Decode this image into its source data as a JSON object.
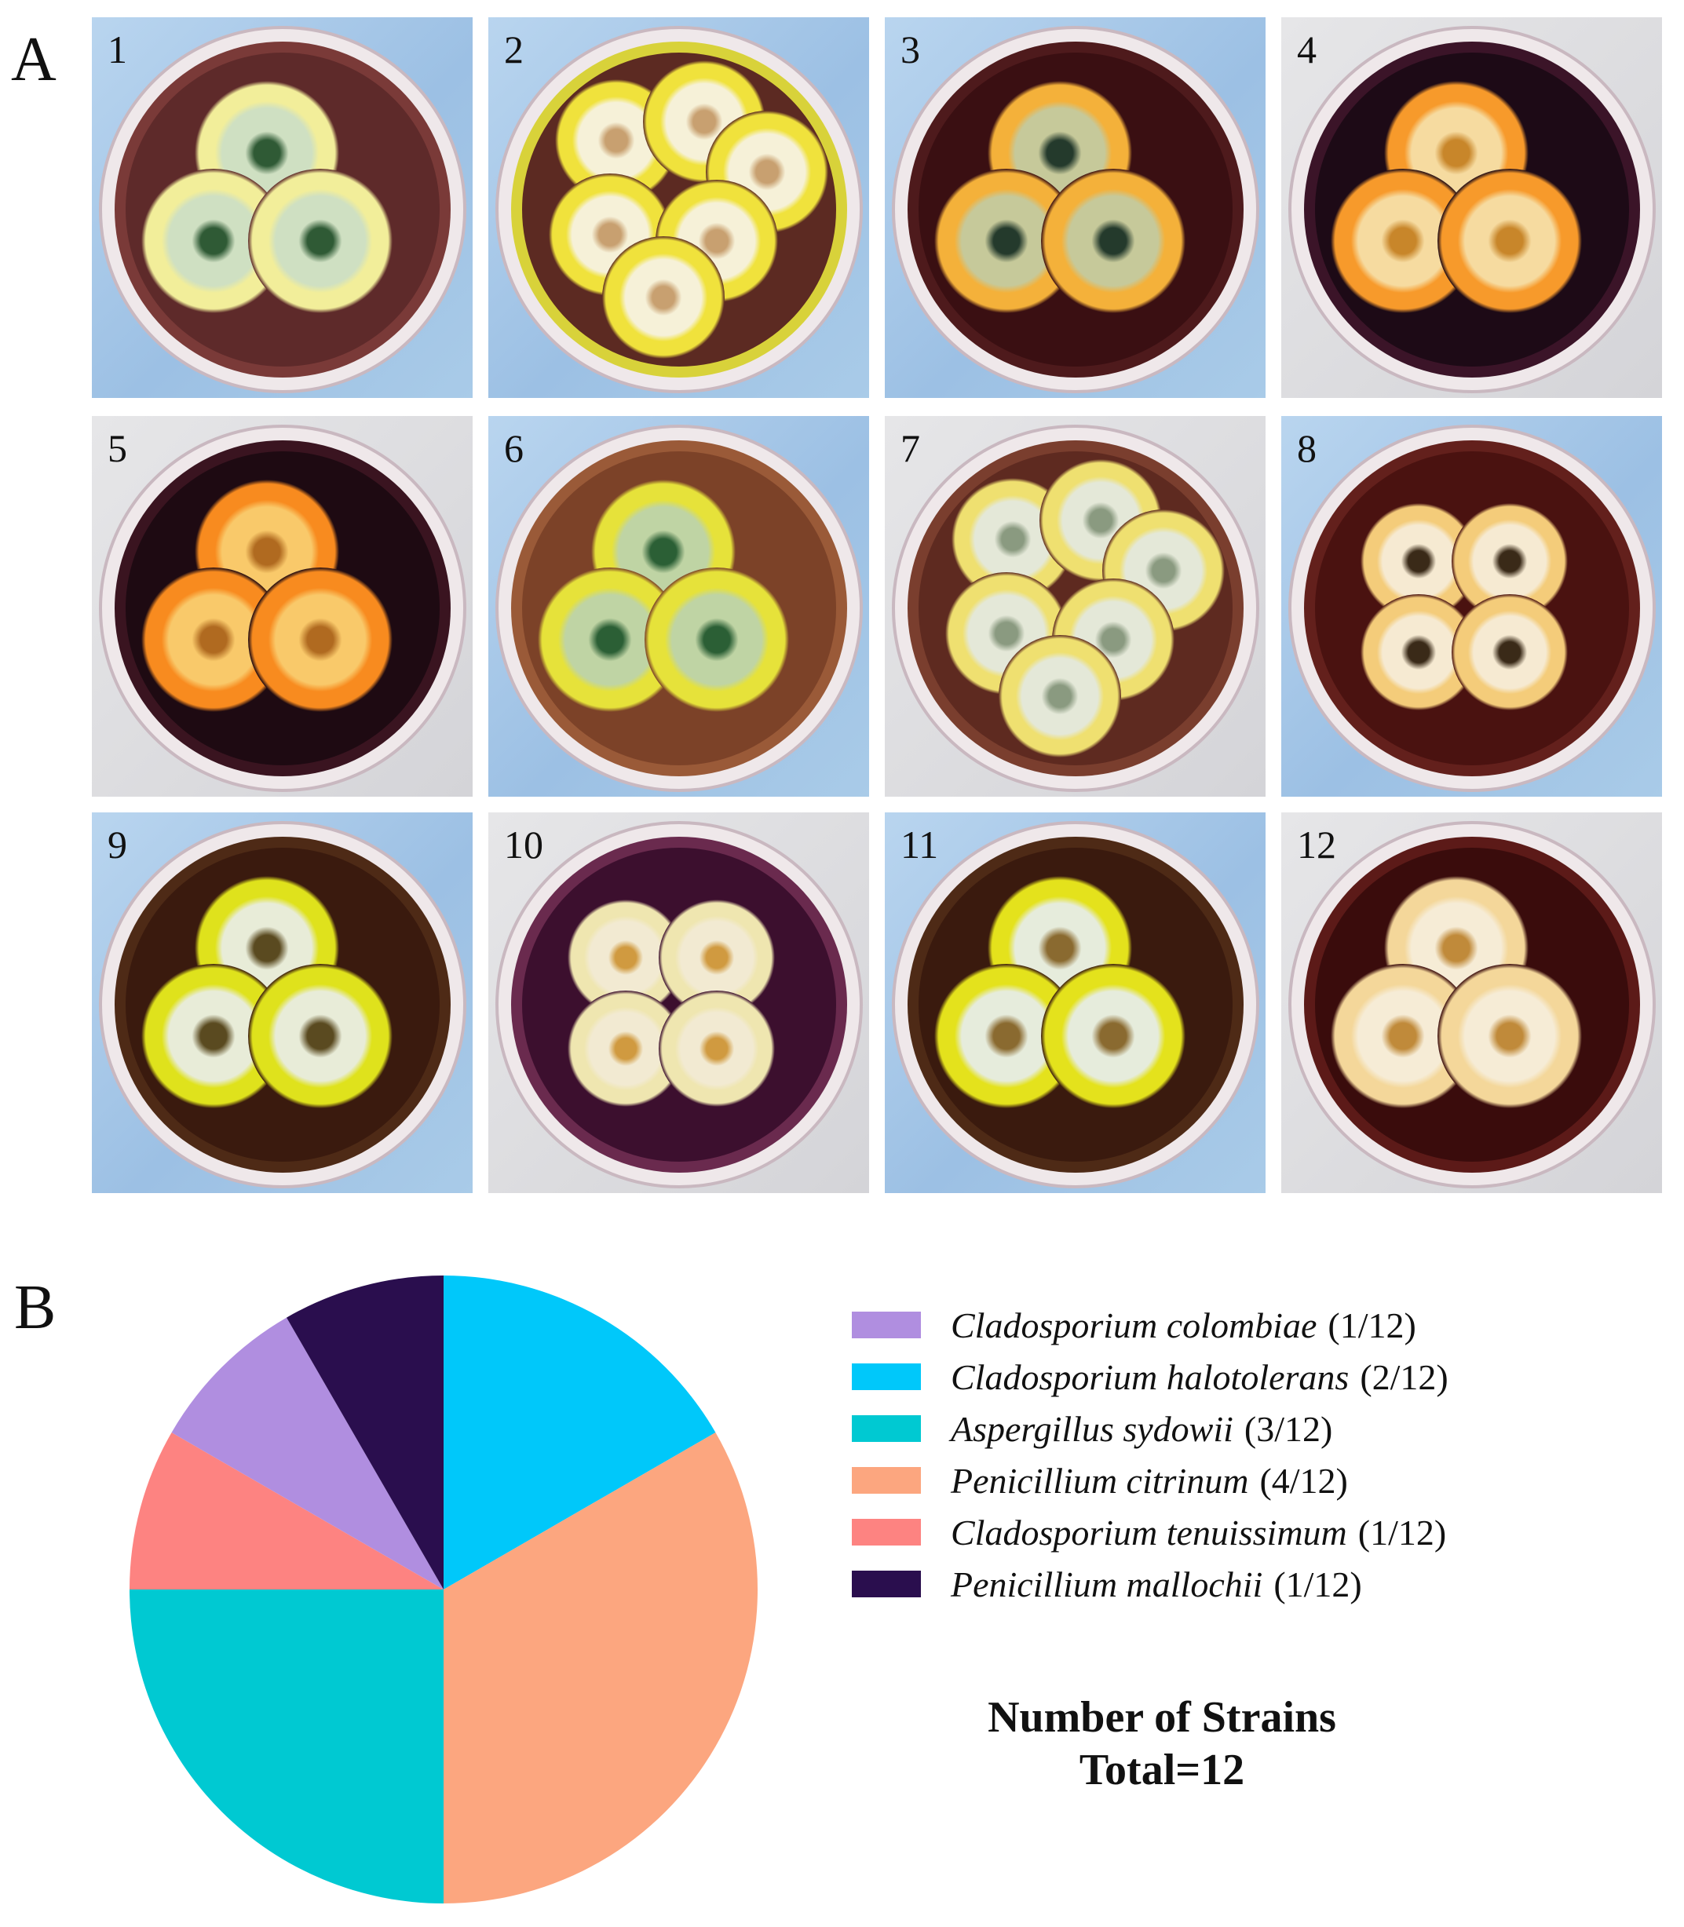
{
  "panels": {
    "a_label": "A",
    "b_label": "B"
  },
  "plates": [
    {
      "label": "1",
      "agar": "#5e2a2a",
      "edge": "#7a3a38",
      "tile": "blue",
      "colony_outer": "#f2ee9a",
      "colony_inner": "#cfe0c2",
      "colony_center": "#2f5a35",
      "colonies": 3
    },
    {
      "label": "2",
      "agar": "#5c2a22",
      "edge": "#d8d23a",
      "tile": "blue",
      "colony_outer": "#f0e23c",
      "colony_inner": "#f6f1d8",
      "colony_center": "#c8a070",
      "colonies": 6
    },
    {
      "label": "3",
      "agar": "#3a0f12",
      "edge": "#4e1a1c",
      "tile": "blue",
      "colony_outer": "#f4b13a",
      "colony_inner": "#c6c99a",
      "colony_center": "#243a2c",
      "colonies": 3
    },
    {
      "label": "4",
      "agar": "#1d0a16",
      "edge": "#3b1428",
      "tile": "grey",
      "colony_outer": "#f79a2b",
      "colony_inner": "#f6dba0",
      "colony_center": "#c8862a",
      "colonies": 3
    },
    {
      "label": "5",
      "agar": "#1e0a12",
      "edge": "#3a1420",
      "tile": "grey",
      "colony_outer": "#f88b1f",
      "colony_inner": "#f9c96a",
      "colony_center": "#b06a20",
      "colonies": 3
    },
    {
      "label": "6",
      "agar": "#7c4228",
      "edge": "#9a5a38",
      "tile": "blue",
      "colony_outer": "#e6e23a",
      "colony_inner": "#bfd4a4",
      "colony_center": "#2b5f35",
      "colonies": 3
    },
    {
      "label": "7",
      "agar": "#5e2a20",
      "edge": "#7a3e2e",
      "tile": "grey",
      "colony_outer": "#efe070",
      "colony_inner": "#e4e8d8",
      "colony_center": "#8a9a80",
      "colonies": 6
    },
    {
      "label": "8",
      "agar": "#4a1210",
      "edge": "#63201c",
      "tile": "blue",
      "colony_outer": "#f4cc7a",
      "colony_inner": "#f6ead2",
      "colony_center": "#3a2a18",
      "colonies": 4
    },
    {
      "label": "9",
      "agar": "#3a1a0e",
      "edge": "#4e2a16",
      "tile": "blue",
      "colony_outer": "#dfe21c",
      "colony_inner": "#e8ecd8",
      "colony_center": "#5a4a20",
      "colonies": 3
    },
    {
      "label": "10",
      "agar": "#3c0f2e",
      "edge": "#6a2a4e",
      "tile": "grey",
      "colony_outer": "#efe6b0",
      "colony_inner": "#f2ead2",
      "colony_center": "#d09a40",
      "colonies": 4
    },
    {
      "label": "11",
      "agar": "#3a1a0e",
      "edge": "#4e2a16",
      "tile": "blue",
      "colony_outer": "#e4e21c",
      "colony_inner": "#e6ecdc",
      "colony_center": "#8a6a30",
      "colonies": 3
    },
    {
      "label": "12",
      "agar": "#3a0c0c",
      "edge": "#5c1a18",
      "tile": "grey",
      "colony_outer": "#f4d79a",
      "colony_inner": "#f6ecd6",
      "colony_center": "#c08a3a",
      "colonies": 3
    }
  ],
  "chart_data": {
    "type": "pie",
    "title": "Number of Strains",
    "subtitle": "Total=12",
    "total": 12,
    "start": "12 o'clock",
    "direction": "clockwise",
    "slices": [
      {
        "name": "Cladosporium halotolerans",
        "count_label": "(2/12)",
        "value": 2,
        "color": "#00c8fa"
      },
      {
        "name": "Penicillium citrinum",
        "count_label": "(4/12)",
        "value": 4,
        "color": "#fca67f"
      },
      {
        "name": "Aspergillus sydowii",
        "count_label": "(3/12)",
        "value": 3,
        "color": "#00c9d2"
      },
      {
        "name": "Cladosporium tenuissimum",
        "count_label": "(1/12)",
        "value": 1,
        "color": "#fd8381"
      },
      {
        "name": "Cladosporium colombiae",
        "count_label": "(1/12)",
        "value": 1,
        "color": "#b08ee0"
      },
      {
        "name": "Penicillium mallochii",
        "count_label": "(1/12)",
        "value": 1,
        "color": "#2a0e4e"
      }
    ],
    "legend": [
      {
        "name": "Cladosporium colombiae",
        "count_label": "(1/12)",
        "color": "#b08ee0"
      },
      {
        "name": "Cladosporium halotolerans",
        "count_label": "(2/12)",
        "color": "#00c8fa"
      },
      {
        "name": "Aspergillus sydowii",
        "count_label": "(3/12)",
        "color": "#00c9d2"
      },
      {
        "name": "Penicillium citrinum",
        "count_label": "(4/12)",
        "color": "#fca67f"
      },
      {
        "name": "Cladosporium tenuissimum",
        "count_label": "(1/12)",
        "color": "#fd8381"
      },
      {
        "name": "Penicillium mallochii",
        "count_label": "(1/12)",
        "color": "#2a0e4e"
      }
    ],
    "legend_placement": "right"
  }
}
